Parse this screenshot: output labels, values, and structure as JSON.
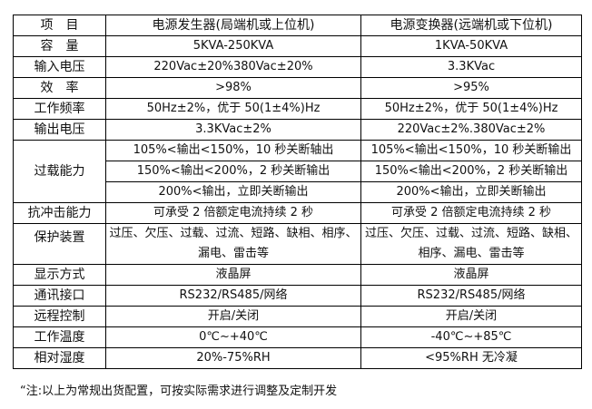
{
  "header": [
    "项　目",
    "电源发生器(局端机或上位机)",
    "电源变换器(远端机或下位机)"
  ],
  "rows": [
    {
      "label": "容　量",
      "a": "5KVA-250KVA",
      "b": "1KVA-50KVA"
    },
    {
      "label": "输入电压",
      "a": "220Vac±20%380Vac±20%",
      "b": "3.3KVac"
    },
    {
      "label": "效　率",
      "a": ">98%",
      "b": ">95%"
    },
    {
      "label": "工作频率",
      "a": "50Hz±2%，优于 50(1±4%)Hz",
      "b": "50Hz±2%，优于 50(1±4%)Hz"
    },
    {
      "label": "输出电压",
      "a": "3.3KVac±2%",
      "b": "220Vac±2%.380Vac±2%"
    }
  ],
  "overload": {
    "label": "过载能力",
    "lines": [
      {
        "a": "105%<输出<150%，10 秒关断轴出",
        "b": "105%<输出<150%，10 秒关断输出"
      },
      {
        "a": "150%<输出<200%，2 秒关断输出",
        "b": "150%<输出<200%，2 秒关断输出"
      },
      {
        "a": "200%<输出，立即关断输出",
        "b": "200%<输出，立即关断输出"
      }
    ]
  },
  "impact": {
    "label": "抗冲击能力",
    "a": "可承受 2 倍额定电流持续 2 秒",
    "b": "可承受 2 倍额定电流持续 2 秒"
  },
  "protection": {
    "label": "保护装置",
    "a": "过压、欠压、过载、过流、短路、缺相、相序、漏电、雷击等",
    "b": "过压、欠压、过载、过流、短路、缺相、相序、漏电、雷击等"
  },
  "rows2": [
    {
      "label": "显示方式",
      "a": "液晶屏",
      "b": "液晶屏"
    },
    {
      "label": "通讯接口",
      "a": "RS232/RS485/网络",
      "b": "RS232/RS485/网络"
    },
    {
      "label": "远程控制",
      "a": "开启/关闭",
      "b": "开启/关闭"
    },
    {
      "label": "工作温度",
      "a": "0℃~+40℃",
      "b": "-40℃~+85℃"
    },
    {
      "label": "相对湿度",
      "a": "20%-75%RH",
      "b": "<95%RH 无冷凝"
    }
  ],
  "note": "“注:以上为常规出货配置，可按实际需求进行调整及定制开发"
}
